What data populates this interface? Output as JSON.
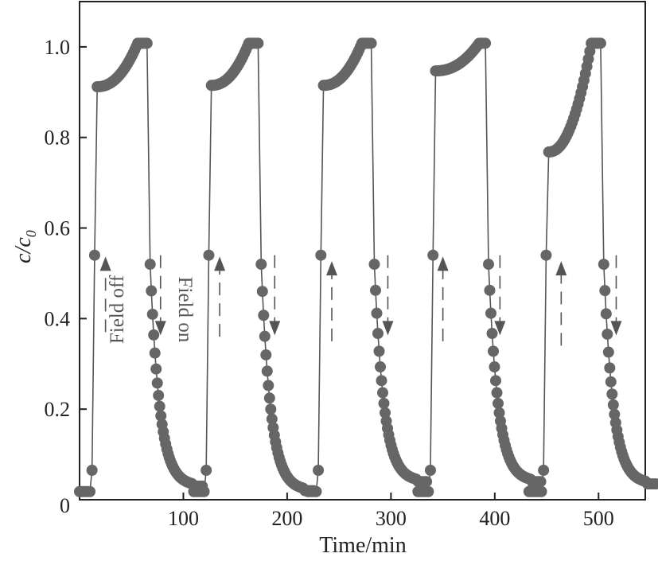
{
  "chart_data": {
    "type": "line",
    "title": "",
    "xlabel": "Time/min",
    "ylabel": "c/c0",
    "ylabel_main": "c/c",
    "ylabel_sub": "0",
    "xlim": [
      0,
      545
    ],
    "ylim": [
      0,
      1.1
    ],
    "x_ticks": [
      100,
      200,
      300,
      400,
      500
    ],
    "y_ticks": [
      0,
      0.2,
      0.4,
      0.6,
      0.8,
      1.0
    ],
    "x_tick_labels": [
      "100",
      "200",
      "300",
      "400",
      "500"
    ],
    "y_tick_labels": [
      "0",
      "0.2",
      "0.4",
      "0.6",
      "0.8",
      "1.0"
    ],
    "grid": false,
    "colors": {
      "series": "#666666",
      "line": "#555555",
      "axis": "#222222"
    },
    "annotations": [
      {
        "text": "Field off",
        "x": 42,
        "y": 0.42
      },
      {
        "text": "Field on",
        "x": 96,
        "y": 0.42
      }
    ],
    "arrows": [
      {
        "dir": "up",
        "x": 25,
        "y_from": 0.37,
        "y_to": 0.53
      },
      {
        "dir": "down",
        "x": 78,
        "y_from": 0.54,
        "y_to": 0.37
      },
      {
        "dir": "up",
        "x": 135,
        "y_from": 0.36,
        "y_to": 0.53
      },
      {
        "dir": "down",
        "x": 188,
        "y_from": 0.54,
        "y_to": 0.37
      },
      {
        "dir": "up",
        "x": 243,
        "y_from": 0.35,
        "y_to": 0.52
      },
      {
        "dir": "down",
        "x": 297,
        "y_from": 0.54,
        "y_to": 0.37
      },
      {
        "dir": "up",
        "x": 350,
        "y_from": 0.35,
        "y_to": 0.53
      },
      {
        "dir": "down",
        "x": 405,
        "y_from": 0.54,
        "y_to": 0.37
      },
      {
        "dir": "up",
        "x": 464,
        "y_from": 0.34,
        "y_to": 0.52
      },
      {
        "dir": "down",
        "x": 517,
        "y_from": 0.54,
        "y_to": 0.37
      }
    ],
    "cycles": [
      {
        "t0": 0,
        "tr": 12,
        "t_first": 17,
        "plateau_start": 0.912,
        "t_rise_end": 56,
        "t_top_end": 65,
        "t_drop": 68,
        "tail": 0.03,
        "tau": 9
      },
      {
        "t0": 110,
        "tr": 122,
        "t_first": 127,
        "plateau_start": 0.915,
        "t_rise_end": 163,
        "t_top_end": 172,
        "t_drop": 175,
        "tail": 0.02,
        "tau": 9
      },
      {
        "t0": 220,
        "tr": 230,
        "t_first": 235,
        "plateau_start": 0.915,
        "t_rise_end": 272,
        "t_top_end": 282,
        "t_drop": 284,
        "tail": 0.04,
        "tau": 9
      },
      {
        "t0": 326,
        "tr": 338,
        "t_first": 343,
        "plateau_start": 0.947,
        "t_rise_end": 385,
        "t_top_end": 392,
        "t_drop": 394,
        "tail": 0.04,
        "tau": 9
      },
      {
        "t0": 433,
        "tr": 447,
        "t_first": 452,
        "plateau_start": 0.768,
        "t_rise_end": 493,
        "t_top_end": 502,
        "t_drop": 505,
        "tail": 0.035,
        "tau": 9
      }
    ]
  }
}
